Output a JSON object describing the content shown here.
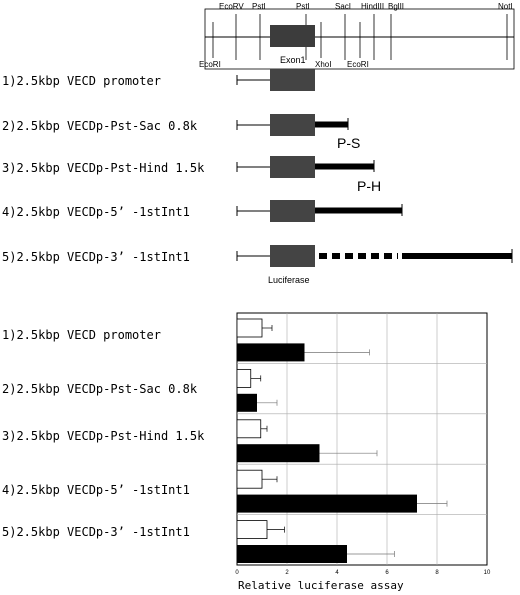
{
  "map": {
    "sites_top": [
      "EcoRV",
      "PstI",
      "PstI",
      "SacI",
      "HindIII",
      "BglII",
      "NotI"
    ],
    "sites_bottom": [
      "EcoRI",
      "XhoI",
      "EcoRI"
    ],
    "exon_label": "Exon1"
  },
  "constructs": [
    {
      "label": "1)2.5kbp VECD promoter"
    },
    {
      "label": "2)2.5kbp VECDp-Pst-Sac 0.8k",
      "fragment": "P-S"
    },
    {
      "label": "3)2.5kbp VECDp-Pst-Hind 1.5k",
      "fragment": "P-H"
    },
    {
      "label": "4)2.5kbp VECDp-5’ -1stInt1"
    },
    {
      "label": "5)2.5kbp VECDp-3’ -1stInt1"
    }
  ],
  "luciferase_label": "Luciferase",
  "chart_data": {
    "type": "bar",
    "orientation": "horizontal",
    "categories": [
      "1)2.5kbp VECD promoter",
      "2)2.5kbp VECDp-Pst-Sac 0.8k",
      "3)2.5kbp VECDp-Pst-Hind 1.5k",
      "4)2.5kbp VECDp-5’ -1stInt1",
      "5)2.5kbp VECDp-3’ -1stInt1"
    ],
    "series": [
      {
        "values": [
          1.0,
          0.55,
          0.95,
          1.0,
          1.2
        ],
        "errors": [
          0.4,
          0.4,
          0.25,
          0.6,
          0.7
        ],
        "color": "#ffffff"
      },
      {
        "values": [
          2.7,
          0.8,
          3.3,
          7.2,
          4.4
        ],
        "errors": [
          2.6,
          0.8,
          2.3,
          1.2,
          1.9
        ],
        "color": "#000000"
      }
    ],
    "xlim": [
      0,
      10
    ],
    "ticks": [
      0,
      2,
      4,
      6,
      8,
      10
    ],
    "xlabel": "Relative luciferase assay",
    "grid": true
  }
}
